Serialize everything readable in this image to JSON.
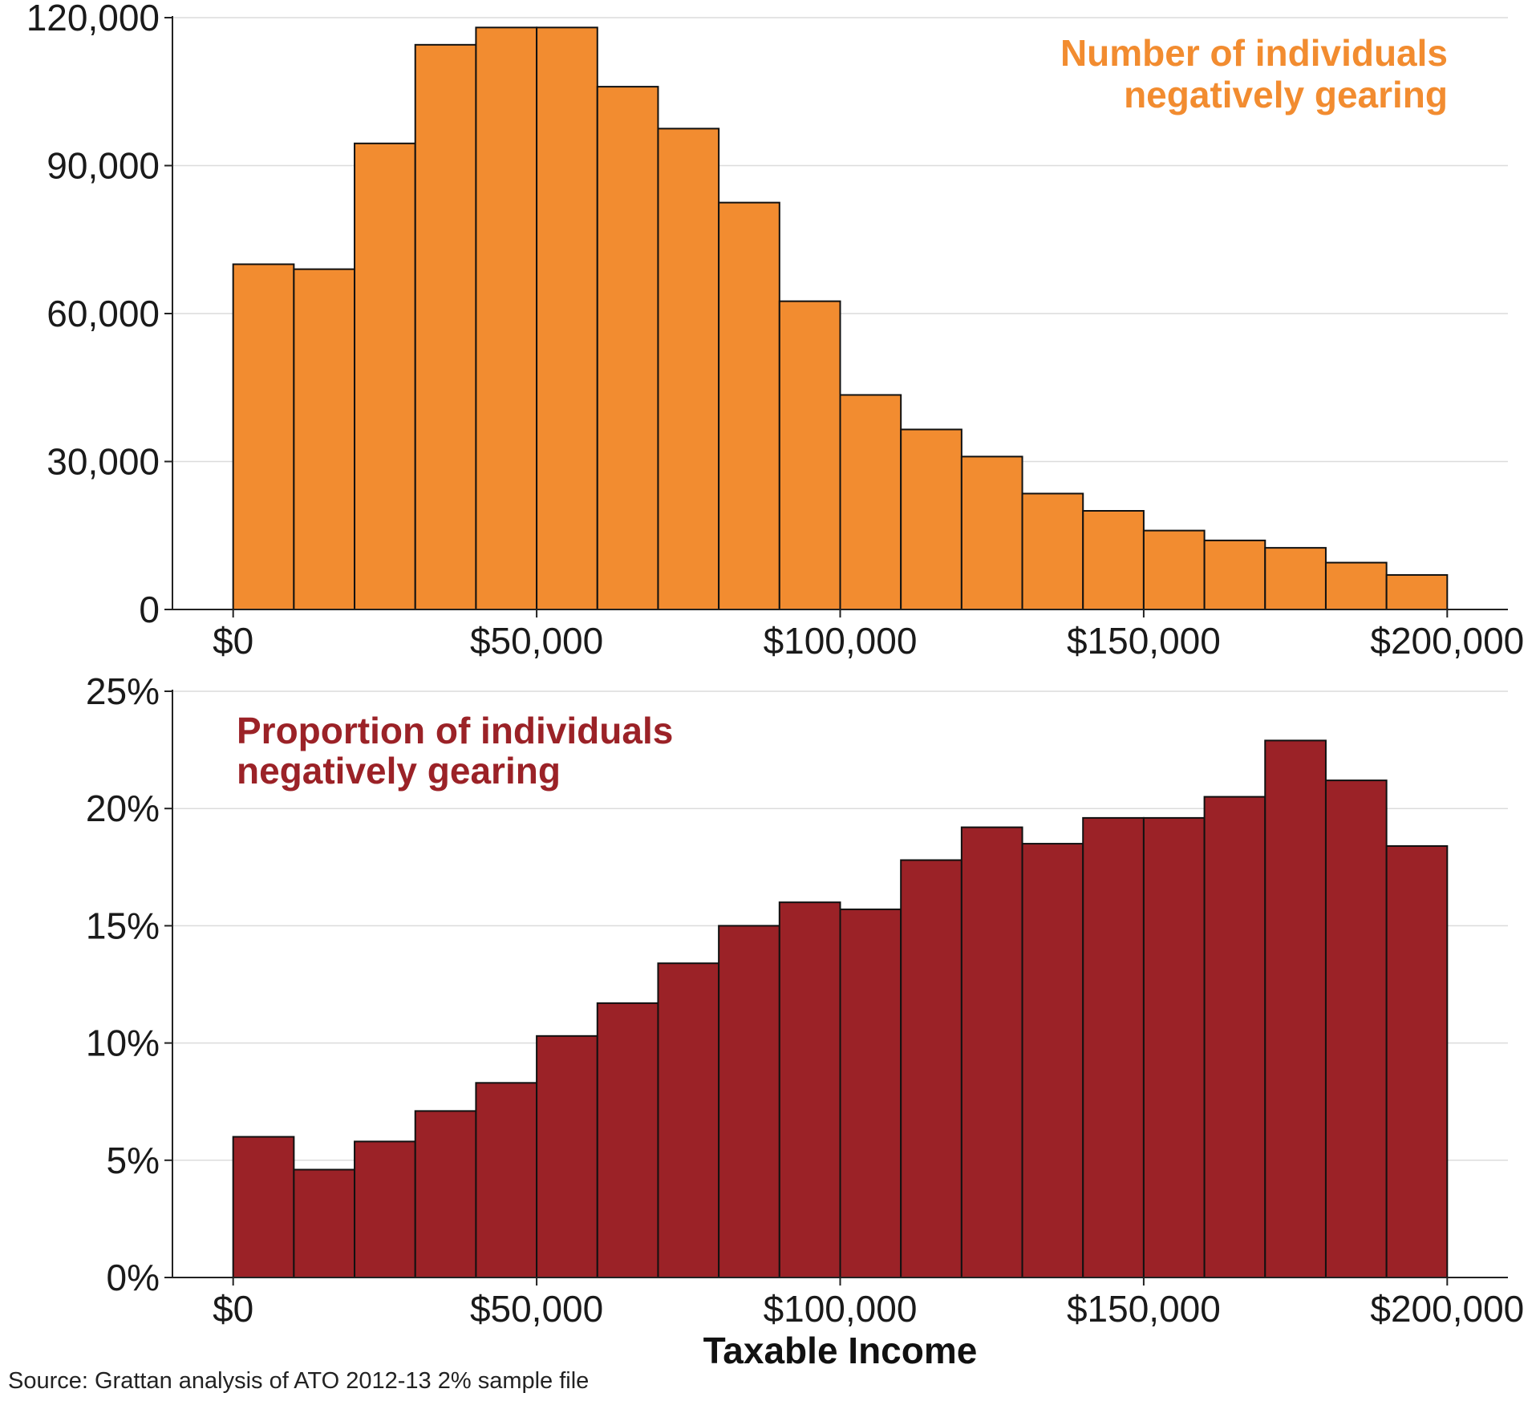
{
  "source": "Source: Grattan analysis of ATO 2012-13 2% sample file",
  "chart_data": [
    {
      "type": "bar",
      "title": "Number of individuals negatively gearing",
      "title_lines": [
        "Number of individuals",
        "negatively gearing"
      ],
      "title_color": "#F28C30",
      "bar_color": "#F28C30",
      "xlabel": "",
      "ylabel": "",
      "xlim": [
        -10000,
        210000
      ],
      "ylim": [
        0,
        120000
      ],
      "bin_width": 10000,
      "x": [
        0,
        10000,
        20000,
        30000,
        40000,
        50000,
        60000,
        70000,
        80000,
        90000,
        100000,
        110000,
        120000,
        130000,
        140000,
        150000,
        160000,
        170000,
        180000,
        190000
      ],
      "values": [
        70000,
        69000,
        94500,
        114500,
        118000,
        118000,
        106000,
        97500,
        82500,
        62500,
        43500,
        36500,
        31000,
        23500,
        20000,
        16000,
        14000,
        12500,
        9500,
        7000
      ],
      "y_ticks": [
        0,
        30000,
        60000,
        90000,
        120000
      ],
      "y_tick_labels": [
        "0",
        "30,000",
        "60,000",
        "90,000",
        "120,000"
      ],
      "x_ticks": [
        0,
        50000,
        100000,
        150000,
        200000
      ],
      "x_tick_labels": [
        "$0",
        "$50,000",
        "$100,000",
        "$150,000",
        "$200,000"
      ],
      "grid": "horizontal"
    },
    {
      "type": "bar",
      "title": "Proportion of individuals negatively gearing",
      "title_lines": [
        "Proportion of individuals",
        "negatively gearing"
      ],
      "title_color": "#9B2227",
      "bar_color": "#9B2227",
      "xlabel": "Taxable Income",
      "ylabel": "",
      "xlim": [
        -10000,
        210000
      ],
      "ylim": [
        0,
        25
      ],
      "bin_width": 10000,
      "x": [
        0,
        10000,
        20000,
        30000,
        40000,
        50000,
        60000,
        70000,
        80000,
        90000,
        100000,
        110000,
        120000,
        130000,
        140000,
        150000,
        160000,
        170000,
        180000,
        190000
      ],
      "values": [
        6.0,
        4.6,
        5.8,
        7.1,
        8.3,
        10.3,
        11.7,
        13.4,
        15.0,
        16.0,
        15.7,
        17.8,
        19.2,
        18.5,
        19.6,
        19.6,
        20.5,
        22.9,
        21.2,
        18.4
      ],
      "y_ticks": [
        0,
        5,
        10,
        15,
        20,
        25
      ],
      "y_tick_labels": [
        "0%",
        "5%",
        "10%",
        "15%",
        "20%",
        "25%"
      ],
      "x_ticks": [
        0,
        50000,
        100000,
        150000,
        200000
      ],
      "x_tick_labels": [
        "$0",
        "$50,000",
        "$100,000",
        "$150,000",
        "$200,000"
      ],
      "grid": "horizontal"
    }
  ]
}
